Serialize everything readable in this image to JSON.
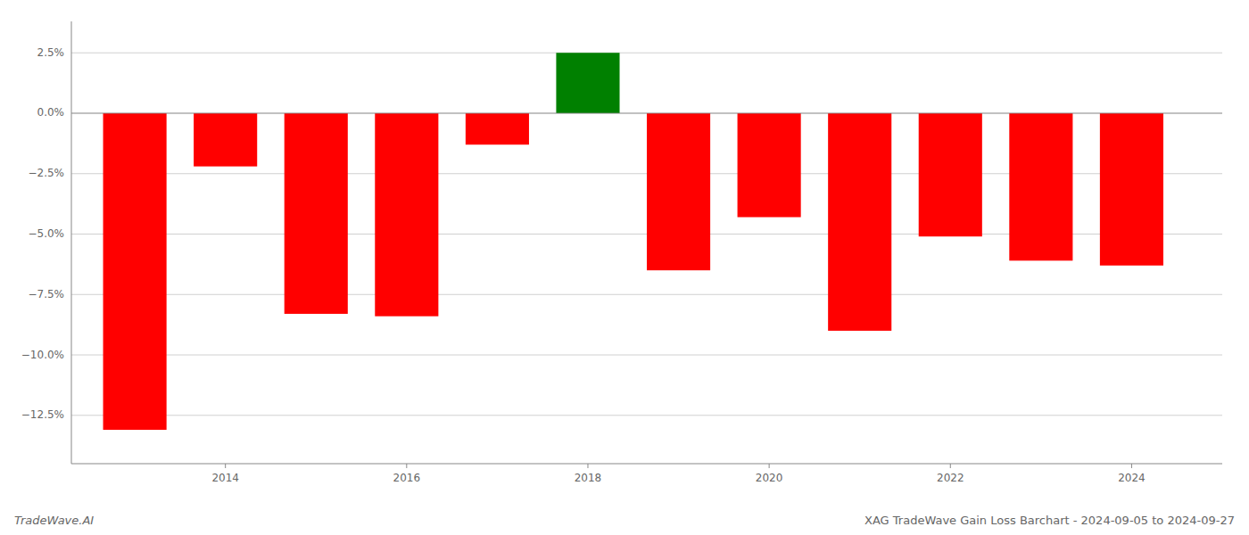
{
  "chart_data": {
    "type": "bar",
    "title": "XAG TradeWave Gain Loss Barchart - 2024-09-05 to 2024-09-27",
    "annotations": [
      "TradeWave.AI"
    ],
    "x": [
      2013,
      2014,
      2015,
      2016,
      2017,
      2018,
      2019,
      2020,
      2021,
      2022,
      2023,
      2024
    ],
    "values": [
      -13.1,
      -2.2,
      -8.3,
      -8.4,
      -1.3,
      2.5,
      -6.5,
      -4.3,
      -9.0,
      -5.1,
      -6.1,
      -6.3
    ],
    "colors": [
      "#ff0000",
      "#ff0000",
      "#ff0000",
      "#ff0000",
      "#ff0000",
      "#008000",
      "#ff0000",
      "#ff0000",
      "#ff0000",
      "#ff0000",
      "#ff0000",
      "#ff0000"
    ],
    "xlim": [
      2012.3,
      2025.0
    ],
    "xticks": [
      2014,
      2016,
      2018,
      2020,
      2022,
      2024
    ],
    "ylim": [
      -14.5,
      3.8
    ],
    "yticks": [
      {
        "value": 2.5,
        "label": "2.5%"
      },
      {
        "value": 0.0,
        "label": "0.0%"
      },
      {
        "value": -2.5,
        "label": "−2.5%"
      },
      {
        "value": -5.0,
        "label": "−5.0%"
      },
      {
        "value": -7.5,
        "label": "−7.5%"
      },
      {
        "value": -10.0,
        "label": "−10.0%"
      },
      {
        "value": -12.5,
        "label": "−12.5%"
      }
    ],
    "grid": true
  }
}
